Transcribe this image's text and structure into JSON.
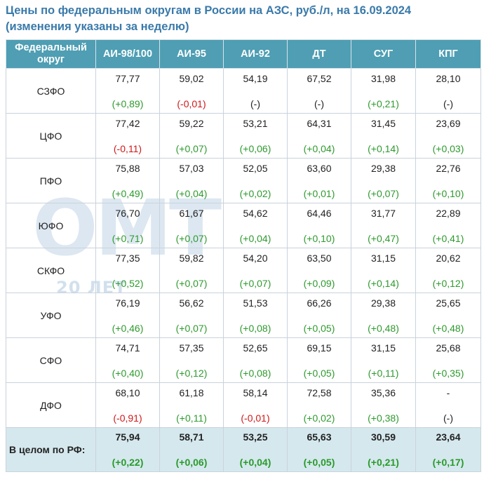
{
  "title": {
    "line1": "Цены по федеральным округам в России на АЗС, руб./л, на 16.09.2024",
    "line2": "(изменения указаны за неделю)"
  },
  "watermark": {
    "main": "ОМТ",
    "sub": "20 ЛЕТ"
  },
  "colors": {
    "header_bg": "#4f9eb3",
    "total_bg": "#d5e8ee",
    "positive": "#2e9a2e",
    "negative": "#d01818",
    "title": "#3a7aaa"
  },
  "table": {
    "headers": [
      "Федеральный округ",
      "АИ-98/100",
      "АИ-95",
      "АИ-92",
      "ДТ",
      "СУГ",
      "КПГ"
    ],
    "rows": [
      {
        "region": "СЗФО",
        "cells": [
          {
            "price": "77,77",
            "change": "(+0,89)",
            "dir": "pos"
          },
          {
            "price": "59,02",
            "change": "(-0,01)",
            "dir": "neg"
          },
          {
            "price": "54,19",
            "change": "(-)",
            "dir": "neu"
          },
          {
            "price": "67,52",
            "change": "(-)",
            "dir": "neu"
          },
          {
            "price": "31,98",
            "change": "(+0,21)",
            "dir": "pos"
          },
          {
            "price": "28,10",
            "change": "(-)",
            "dir": "neu"
          }
        ]
      },
      {
        "region": "ЦФО",
        "cells": [
          {
            "price": "77,42",
            "change": "(-0,11)",
            "dir": "neg"
          },
          {
            "price": "59,22",
            "change": "(+0,07)",
            "dir": "pos"
          },
          {
            "price": "53,21",
            "change": "(+0,06)",
            "dir": "pos"
          },
          {
            "price": "64,31",
            "change": "(+0,04)",
            "dir": "pos"
          },
          {
            "price": "31,45",
            "change": "(+0,14)",
            "dir": "pos"
          },
          {
            "price": "23,69",
            "change": "(+0,03)",
            "dir": "pos"
          }
        ]
      },
      {
        "region": "ПФО",
        "cells": [
          {
            "price": "75,88",
            "change": "(+0,49)",
            "dir": "pos"
          },
          {
            "price": "57,03",
            "change": "(+0,04)",
            "dir": "pos"
          },
          {
            "price": "52,05",
            "change": "(+0,02)",
            "dir": "pos"
          },
          {
            "price": "63,60",
            "change": "(+0,01)",
            "dir": "pos"
          },
          {
            "price": "29,38",
            "change": "(+0,07)",
            "dir": "pos"
          },
          {
            "price": "22,76",
            "change": "(+0,10)",
            "dir": "pos"
          }
        ]
      },
      {
        "region": "ЮФО",
        "cells": [
          {
            "price": "76,70",
            "change": "(+0,71)",
            "dir": "pos"
          },
          {
            "price": "61,67",
            "change": "(+0,07)",
            "dir": "pos"
          },
          {
            "price": "54,62",
            "change": "(+0,04)",
            "dir": "pos"
          },
          {
            "price": "64,46",
            "change": "(+0,10)",
            "dir": "pos"
          },
          {
            "price": "31,77",
            "change": "(+0,47)",
            "dir": "pos"
          },
          {
            "price": "22,89",
            "change": "(+0,41)",
            "dir": "pos"
          }
        ]
      },
      {
        "region": "СКФО",
        "cells": [
          {
            "price": "77,35",
            "change": "(+0,52)",
            "dir": "pos"
          },
          {
            "price": "59,82",
            "change": "(+0,07)",
            "dir": "pos"
          },
          {
            "price": "54,20",
            "change": "(+0,07)",
            "dir": "pos"
          },
          {
            "price": "63,50",
            "change": "(+0,09)",
            "dir": "pos"
          },
          {
            "price": "31,15",
            "change": "(+0,14)",
            "dir": "pos"
          },
          {
            "price": "20,62",
            "change": "(+0,12)",
            "dir": "pos"
          }
        ]
      },
      {
        "region": "УФО",
        "cells": [
          {
            "price": "76,19",
            "change": "(+0,46)",
            "dir": "pos"
          },
          {
            "price": "56,62",
            "change": "(+0,07)",
            "dir": "pos"
          },
          {
            "price": "51,53",
            "change": "(+0,08)",
            "dir": "pos"
          },
          {
            "price": "66,26",
            "change": "(+0,05)",
            "dir": "pos"
          },
          {
            "price": "29,38",
            "change": "(+0,48)",
            "dir": "pos"
          },
          {
            "price": "25,65",
            "change": "(+0,48)",
            "dir": "pos"
          }
        ]
      },
      {
        "region": "СФО",
        "cells": [
          {
            "price": "74,71",
            "change": "(+0,40)",
            "dir": "pos"
          },
          {
            "price": "57,35",
            "change": "(+0,12)",
            "dir": "pos"
          },
          {
            "price": "52,65",
            "change": "(+0,08)",
            "dir": "pos"
          },
          {
            "price": "69,15",
            "change": "(+0,05)",
            "dir": "pos"
          },
          {
            "price": "31,15",
            "change": "(+0,11)",
            "dir": "pos"
          },
          {
            "price": "25,68",
            "change": "(+0,35)",
            "dir": "pos"
          }
        ]
      },
      {
        "region": "ДФО",
        "cells": [
          {
            "price": "68,10",
            "change": "(-0,91)",
            "dir": "neg"
          },
          {
            "price": "61,18",
            "change": "(+0,11)",
            "dir": "pos"
          },
          {
            "price": "58,14",
            "change": "(-0,01)",
            "dir": "neg"
          },
          {
            "price": "72,58",
            "change": "(+0,02)",
            "dir": "pos"
          },
          {
            "price": "35,36",
            "change": "(+0,38)",
            "dir": "pos"
          },
          {
            "price": "-",
            "change": "(-)",
            "dir": "neu"
          }
        ]
      }
    ],
    "total": {
      "region": "В целом по РФ:",
      "cells": [
        {
          "price": "75,94",
          "change": "(+0,22)",
          "dir": "pos"
        },
        {
          "price": "58,71",
          "change": "(+0,06)",
          "dir": "pos"
        },
        {
          "price": "53,25",
          "change": "(+0,04)",
          "dir": "pos"
        },
        {
          "price": "65,63",
          "change": "(+0,05)",
          "dir": "pos"
        },
        {
          "price": "30,59",
          "change": "(+0,21)",
          "dir": "pos"
        },
        {
          "price": "23,64",
          "change": "(+0,17)",
          "dir": "pos"
        }
      ]
    }
  }
}
